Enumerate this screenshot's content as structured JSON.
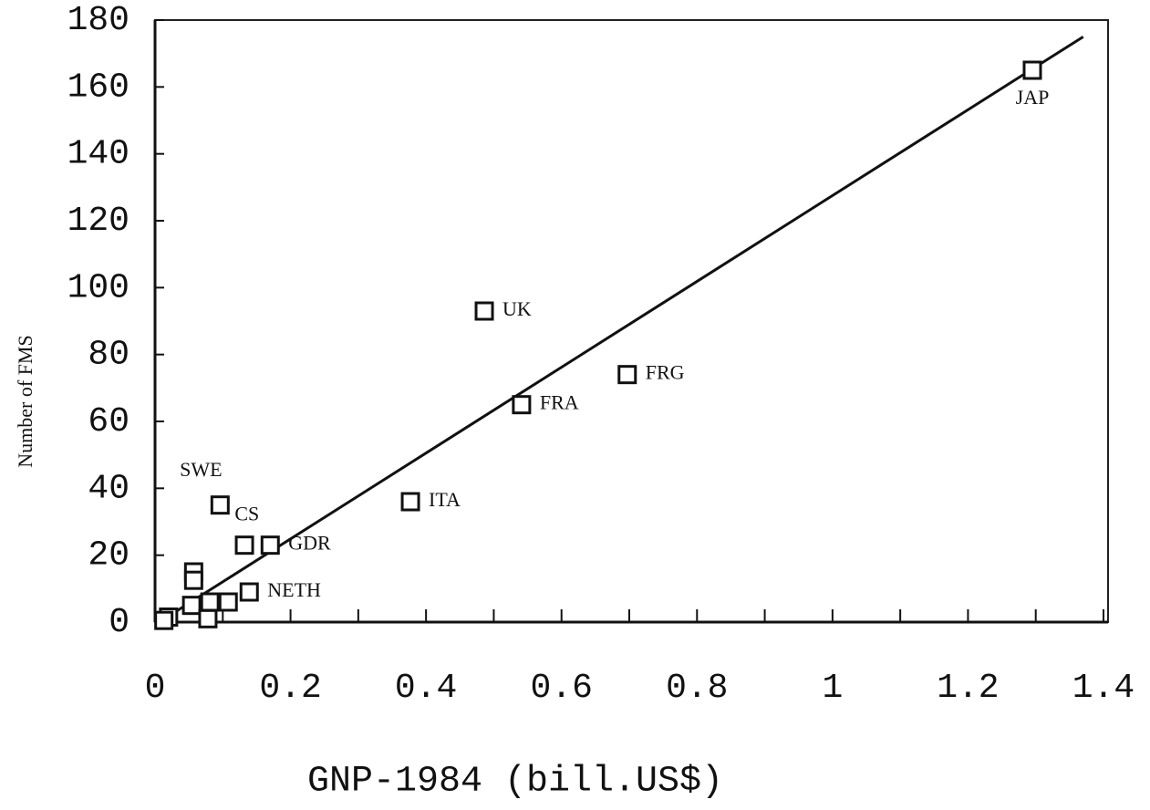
{
  "chart_data": {
    "type": "scatter",
    "x_label": "GNP-1984 (bill.US$)",
    "y_label": "Number of FMS",
    "x": [
      1.295,
      0.486,
      0.541,
      0.697,
      0.377,
      0.096,
      0.057,
      0.057,
      0.132,
      0.17,
      0.139,
      0.108,
      0.081,
      0.054,
      0.078,
      0.02,
      0.013
    ],
    "y": [
      165,
      93,
      65,
      74,
      36,
      35,
      15,
      12.5,
      23,
      23,
      9,
      6,
      6,
      5,
      1,
      1.5,
      0.5
    ],
    "point_labels": [
      "JAP",
      "UK",
      "FRA",
      "FRG",
      "ITA",
      "CS",
      "SWE",
      null,
      null,
      "GDR",
      "NETH",
      null,
      null,
      null,
      null,
      null,
      null
    ],
    "fit_line": {
      "x": [
        0.01,
        1.37
      ],
      "y": [
        0.5,
        175
      ]
    },
    "color": "#111111",
    "xlim": [
      0,
      1.4
    ],
    "ylim": [
      0,
      180
    ],
    "xticks": [
      0,
      0.2,
      0.4,
      0.6,
      0.8,
      1,
      1.2,
      1.4
    ],
    "xminorticks": [
      0.1,
      0.3,
      0.5,
      0.7,
      0.9,
      1.1,
      1.3
    ],
    "yticks": [
      0,
      20,
      40,
      60,
      80,
      100,
      120,
      140,
      160,
      180
    ]
  }
}
